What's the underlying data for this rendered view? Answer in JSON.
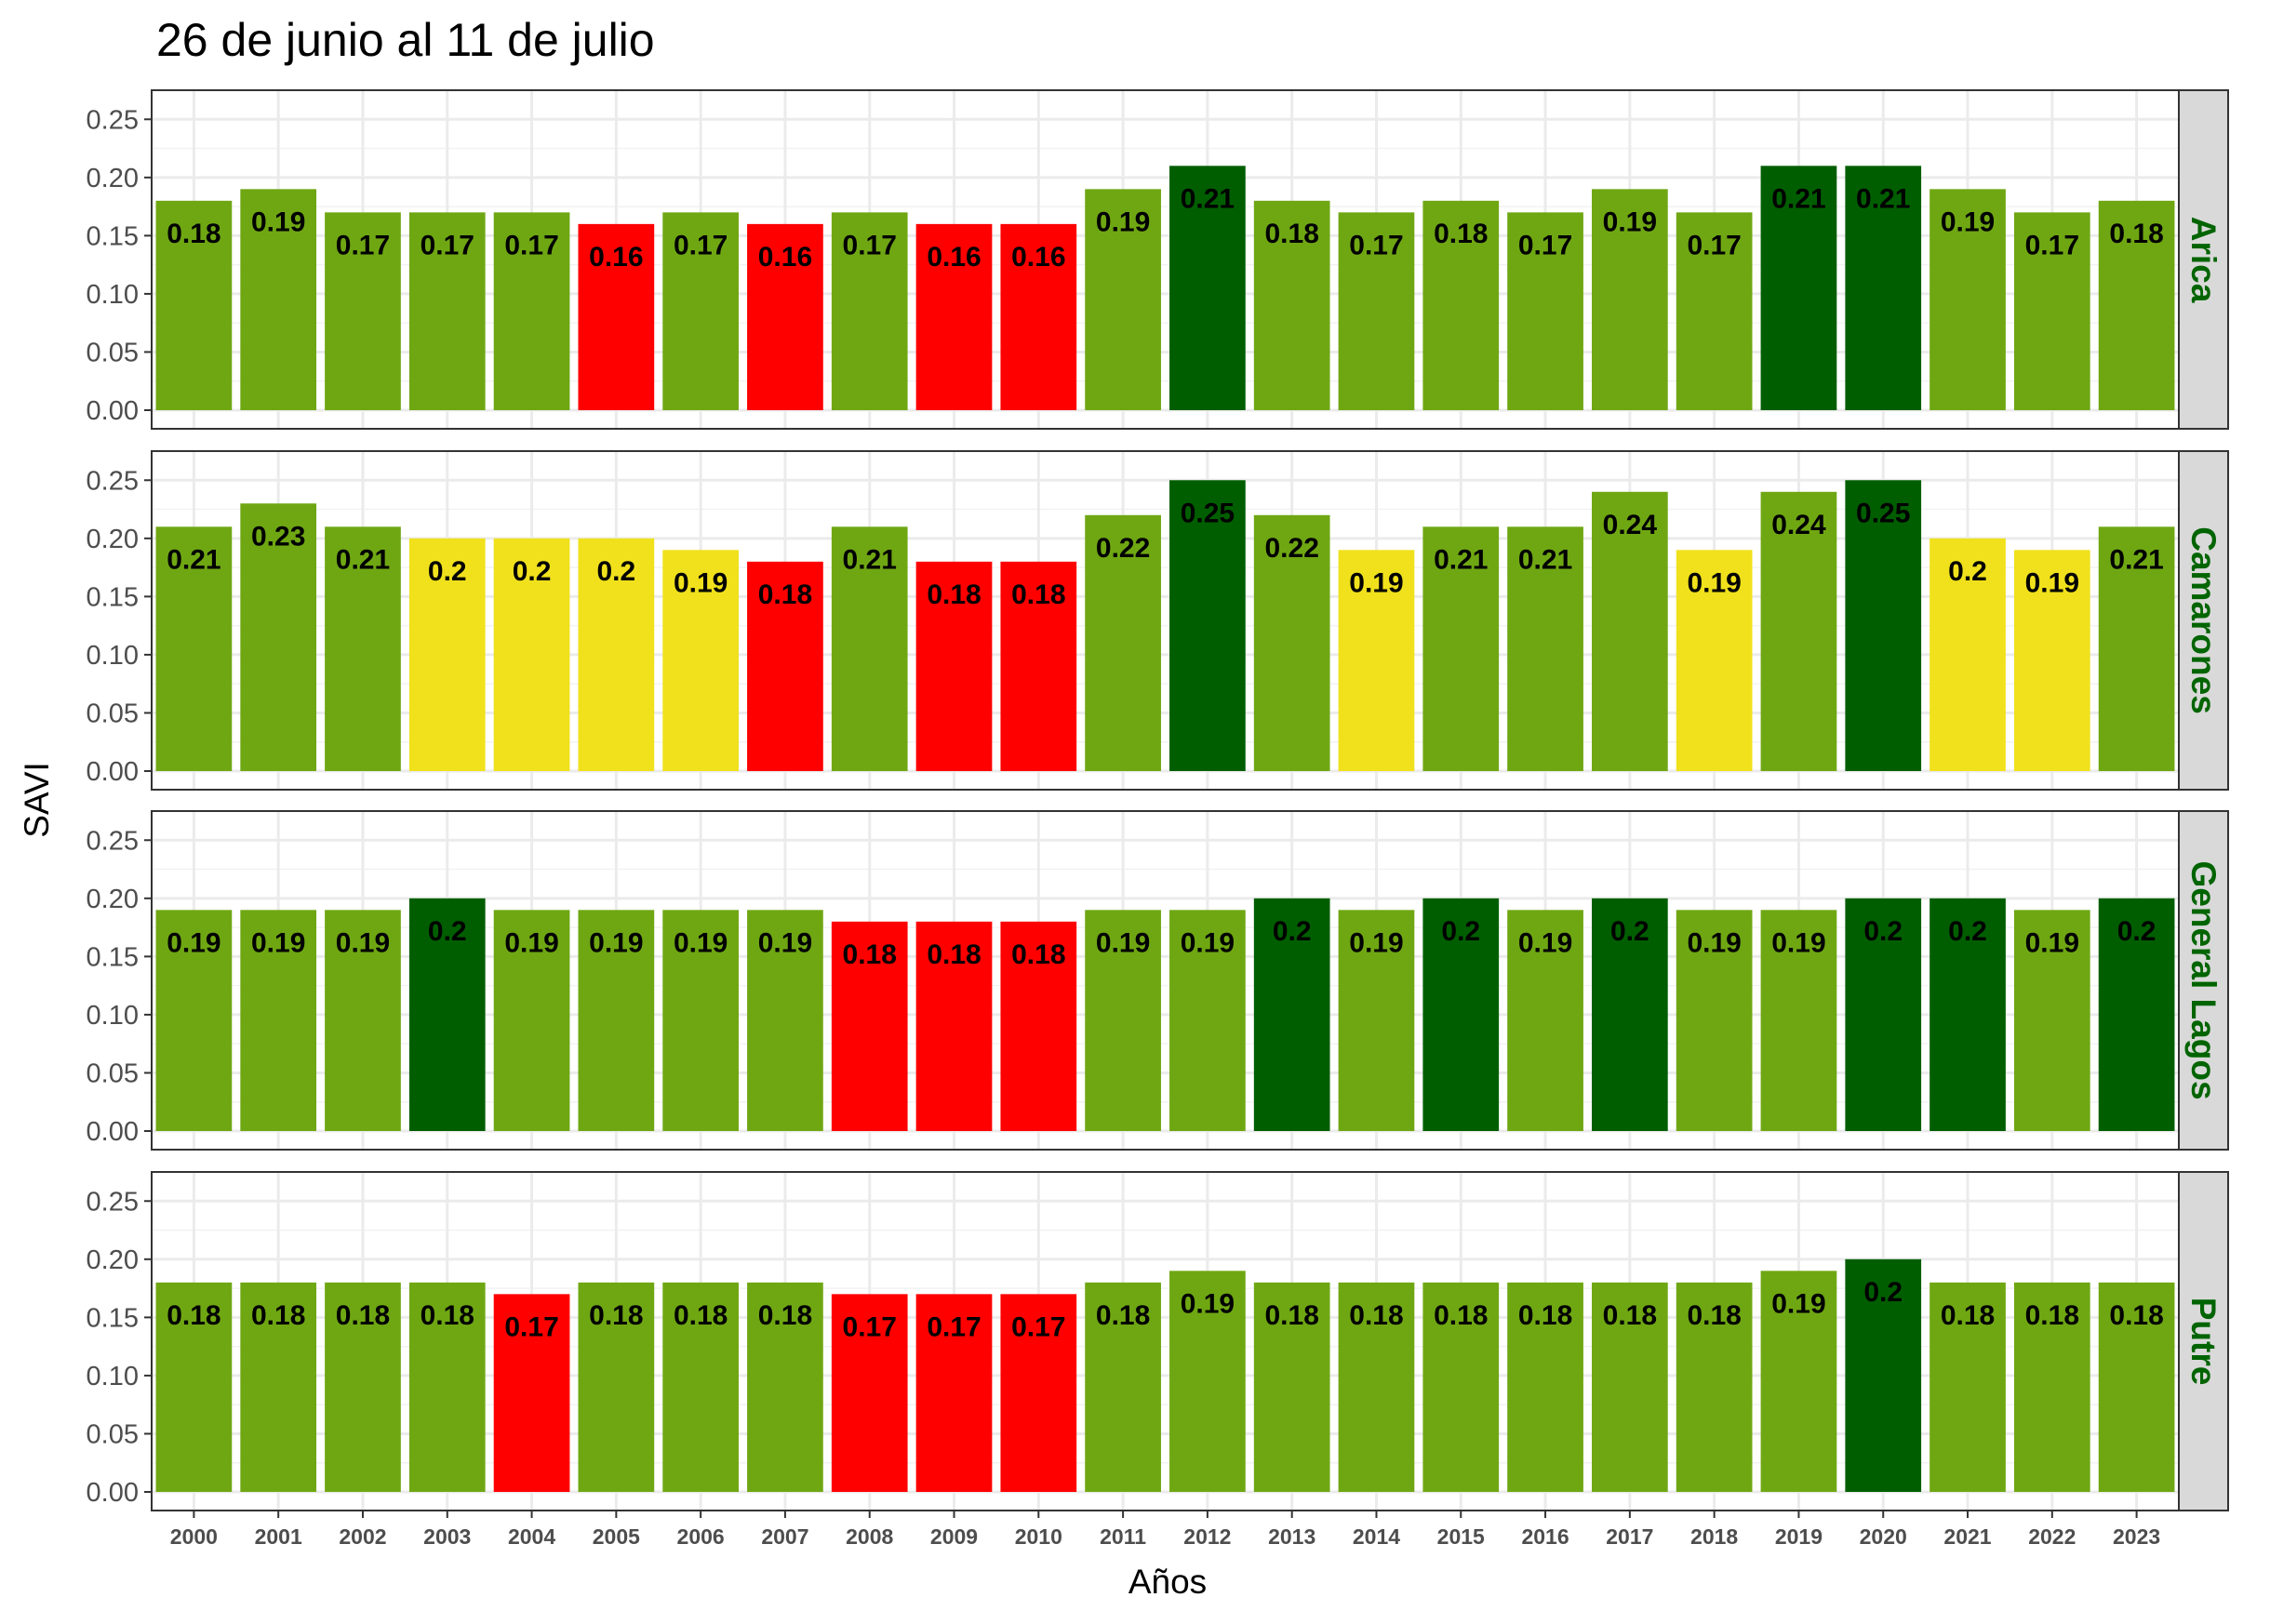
{
  "chart_data": {
    "type": "bar",
    "title": "26 de junio al 11 de julio",
    "xlabel": "Años",
    "ylabel": "SAVI",
    "ylim": [
      0,
      0.25
    ],
    "yticks": [
      "0.00",
      "0.05",
      "0.10",
      "0.15",
      "0.20",
      "0.25"
    ],
    "grid": true,
    "categories": [
      "2000",
      "2001",
      "2002",
      "2003",
      "2004",
      "2005",
      "2006",
      "2007",
      "2008",
      "2009",
      "2010",
      "2011",
      "2012",
      "2013",
      "2014",
      "2015",
      "2016",
      "2017",
      "2018",
      "2019",
      "2020",
      "2021",
      "2022",
      "2023"
    ],
    "colors": {
      "red": "#ff0000",
      "yellow": "#f0e11c",
      "green": "#6fa713",
      "dark_green": "#005e00"
    },
    "panels": [
      {
        "name": "Arica",
        "values": [
          0.18,
          0.19,
          0.17,
          0.17,
          0.17,
          0.16,
          0.17,
          0.16,
          0.17,
          0.16,
          0.16,
          0.19,
          0.21,
          0.18,
          0.17,
          0.18,
          0.17,
          0.19,
          0.17,
          0.21,
          0.21,
          0.19,
          0.17,
          0.18
        ],
        "labels": [
          "0.18",
          "0.19",
          "0.17",
          "0.17",
          "0.17",
          "0.16",
          "0.17",
          "0.16",
          "0.17",
          "0.16",
          "0.16",
          "0.19",
          "0.21",
          "0.18",
          "0.17",
          "0.18",
          "0.17",
          "0.19",
          "0.17",
          "0.21",
          "0.21",
          "0.19",
          "0.17",
          "0.18"
        ],
        "classes": [
          "green",
          "green",
          "green",
          "green",
          "green",
          "red",
          "green",
          "red",
          "green",
          "red",
          "red",
          "green",
          "dark_green",
          "green",
          "green",
          "green",
          "green",
          "green",
          "green",
          "dark_green",
          "dark_green",
          "green",
          "green",
          "green"
        ]
      },
      {
        "name": "Camarones",
        "values": [
          0.21,
          0.23,
          0.21,
          0.2,
          0.2,
          0.2,
          0.19,
          0.18,
          0.21,
          0.18,
          0.18,
          0.22,
          0.25,
          0.22,
          0.19,
          0.21,
          0.21,
          0.24,
          0.19,
          0.24,
          0.25,
          0.2,
          0.19,
          0.21
        ],
        "labels": [
          "0.21",
          "0.23",
          "0.21",
          "0.2",
          "0.2",
          "0.2",
          "0.19",
          "0.18",
          "0.21",
          "0.18",
          "0.18",
          "0.22",
          "0.25",
          "0.22",
          "0.19",
          "0.21",
          "0.21",
          "0.24",
          "0.19",
          "0.24",
          "0.25",
          "0.2",
          "0.19",
          "0.21"
        ],
        "classes": [
          "green",
          "green",
          "green",
          "yellow",
          "yellow",
          "yellow",
          "yellow",
          "red",
          "green",
          "red",
          "red",
          "green",
          "dark_green",
          "green",
          "yellow",
          "green",
          "green",
          "green",
          "yellow",
          "green",
          "dark_green",
          "yellow",
          "yellow",
          "green"
        ]
      },
      {
        "name": "General Lagos",
        "values": [
          0.19,
          0.19,
          0.19,
          0.2,
          0.19,
          0.19,
          0.19,
          0.19,
          0.18,
          0.18,
          0.18,
          0.19,
          0.19,
          0.2,
          0.19,
          0.2,
          0.19,
          0.2,
          0.19,
          0.19,
          0.2,
          0.2,
          0.19,
          0.2
        ],
        "labels": [
          "0.19",
          "0.19",
          "0.19",
          "0.2",
          "0.19",
          "0.19",
          "0.19",
          "0.19",
          "0.18",
          "0.18",
          "0.18",
          "0.19",
          "0.19",
          "0.2",
          "0.19",
          "0.2",
          "0.19",
          "0.2",
          "0.19",
          "0.19",
          "0.2",
          "0.2",
          "0.19",
          "0.2"
        ],
        "classes": [
          "green",
          "green",
          "green",
          "dark_green",
          "green",
          "green",
          "green",
          "green",
          "red",
          "red",
          "red",
          "green",
          "green",
          "dark_green",
          "green",
          "dark_green",
          "green",
          "dark_green",
          "green",
          "green",
          "dark_green",
          "dark_green",
          "green",
          "dark_green"
        ]
      },
      {
        "name": "Putre",
        "values": [
          0.18,
          0.18,
          0.18,
          0.18,
          0.17,
          0.18,
          0.18,
          0.18,
          0.17,
          0.17,
          0.17,
          0.18,
          0.19,
          0.18,
          0.18,
          0.18,
          0.18,
          0.18,
          0.18,
          0.19,
          0.2,
          0.18,
          0.18,
          0.18
        ],
        "labels": [
          "0.18",
          "0.18",
          "0.18",
          "0.18",
          "0.17",
          "0.18",
          "0.18",
          "0.18",
          "0.17",
          "0.17",
          "0.17",
          "0.18",
          "0.19",
          "0.18",
          "0.18",
          "0.18",
          "0.18",
          "0.18",
          "0.18",
          "0.19",
          "0.2",
          "0.18",
          "0.18",
          "0.18"
        ],
        "classes": [
          "green",
          "green",
          "green",
          "green",
          "red",
          "green",
          "green",
          "green",
          "red",
          "red",
          "red",
          "green",
          "green",
          "green",
          "green",
          "green",
          "green",
          "green",
          "green",
          "green",
          "dark_green",
          "green",
          "green",
          "green"
        ]
      }
    ]
  }
}
